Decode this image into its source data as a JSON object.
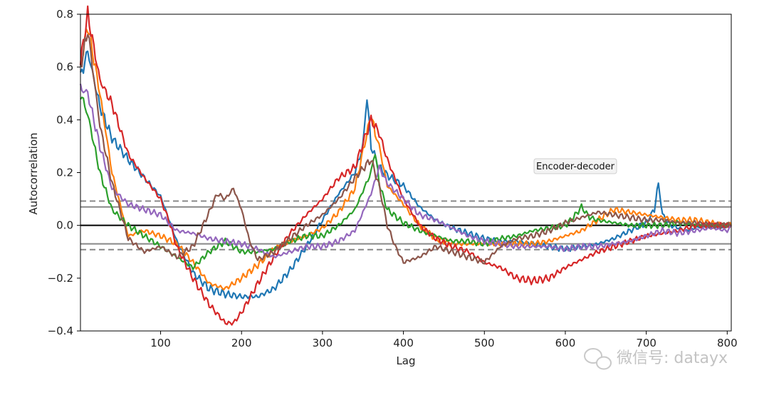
{
  "chart_data": {
    "type": "line",
    "title": "",
    "xlabel": "Lag",
    "ylabel": "Autocorrelation",
    "xlim": [
      1,
      805
    ],
    "ylim": [
      -0.4,
      0.8
    ],
    "xticks": [
      100,
      200,
      300,
      400,
      500,
      600,
      700,
      800
    ],
    "xtick_labels": [
      "100",
      "200",
      "300",
      "400",
      "500",
      "600",
      "700",
      "800"
    ],
    "yticks": [
      -0.4,
      -0.2,
      0.0,
      0.2,
      0.4,
      0.6,
      0.8
    ],
    "ytick_labels": [
      "−0.4",
      "−0.2",
      "0.0",
      "0.2",
      "0.4",
      "0.6",
      "0.8"
    ],
    "annotation": "Encoder-decoder",
    "reference_lines": [
      {
        "name": "zero",
        "y": 0.0,
        "style": "solid",
        "color": "#000000"
      },
      {
        "name": "ci95-upper",
        "y": 0.07,
        "style": "solid",
        "color": "#888888"
      },
      {
        "name": "ci95-lower",
        "y": -0.07,
        "style": "solid",
        "color": "#888888"
      },
      {
        "name": "ci99-upper",
        "y": 0.092,
        "style": "dashed",
        "color": "#888888"
      },
      {
        "name": "ci99-lower",
        "y": -0.092,
        "style": "dashed",
        "color": "#888888"
      }
    ],
    "series": [
      {
        "name": "series-1",
        "color": "#1f77b4",
        "x": [
          1,
          10,
          25,
          40,
          60,
          80,
          100,
          120,
          140,
          160,
          180,
          200,
          220,
          240,
          260,
          280,
          300,
          320,
          340,
          350,
          355,
          360,
          370,
          380,
          400,
          420,
          440,
          460,
          480,
          500,
          520,
          540,
          560,
          580,
          600,
          620,
          640,
          660,
          680,
          700,
          710,
          715,
          720,
          730,
          750,
          770,
          790,
          805
        ],
        "y": [
          0.56,
          0.66,
          0.45,
          0.33,
          0.25,
          0.18,
          0.11,
          -0.06,
          -0.18,
          -0.24,
          -0.26,
          -0.27,
          -0.27,
          -0.24,
          -0.17,
          -0.08,
          0.02,
          0.12,
          0.2,
          0.3,
          0.49,
          0.3,
          0.22,
          0.19,
          0.15,
          0.07,
          0.02,
          -0.01,
          -0.03,
          -0.05,
          -0.06,
          -0.06,
          -0.07,
          -0.08,
          -0.09,
          -0.08,
          -0.07,
          -0.05,
          -0.02,
          0.01,
          0.06,
          0.16,
          0.04,
          0.0,
          -0.02,
          0.0,
          0.0,
          0.0
        ]
      },
      {
        "name": "series-2",
        "color": "#ff7f0e",
        "x": [
          1,
          10,
          25,
          40,
          60,
          80,
          100,
          120,
          140,
          160,
          180,
          200,
          220,
          240,
          260,
          280,
          300,
          320,
          340,
          350,
          360,
          365,
          370,
          380,
          400,
          420,
          440,
          460,
          480,
          500,
          520,
          540,
          560,
          580,
          600,
          620,
          640,
          660,
          680,
          700,
          720,
          740,
          760,
          780,
          800,
          805
        ],
        "y": [
          0.6,
          0.76,
          0.5,
          0.2,
          -0.04,
          -0.02,
          -0.04,
          -0.07,
          -0.14,
          -0.22,
          -0.24,
          -0.2,
          -0.15,
          -0.09,
          -0.06,
          -0.04,
          -0.01,
          0.05,
          0.14,
          0.28,
          0.42,
          0.35,
          0.3,
          0.15,
          0.08,
          0.0,
          -0.05,
          -0.07,
          -0.07,
          -0.07,
          -0.07,
          -0.07,
          -0.07,
          -0.06,
          -0.04,
          -0.02,
          0.02,
          0.06,
          0.05,
          0.04,
          0.03,
          0.02,
          0.02,
          0.01,
          0.0,
          0.0
        ]
      },
      {
        "name": "series-3",
        "color": "#2ca02c",
        "x": [
          1,
          10,
          25,
          40,
          60,
          80,
          100,
          120,
          140,
          160,
          180,
          200,
          220,
          240,
          260,
          280,
          300,
          320,
          340,
          360,
          365,
          370,
          380,
          400,
          420,
          440,
          460,
          480,
          500,
          520,
          540,
          560,
          580,
          600,
          610,
          620,
          630,
          640,
          660,
          680,
          700,
          720,
          740,
          760,
          780,
          800,
          805
        ],
        "y": [
          0.5,
          0.42,
          0.2,
          0.06,
          0.0,
          -0.04,
          -0.08,
          -0.12,
          -0.16,
          -0.1,
          -0.06,
          -0.1,
          -0.1,
          -0.09,
          -0.06,
          -0.04,
          -0.04,
          0.0,
          0.06,
          0.2,
          0.28,
          0.16,
          0.06,
          0.01,
          -0.02,
          -0.04,
          -0.06,
          -0.06,
          -0.07,
          -0.05,
          -0.04,
          -0.02,
          -0.01,
          0.0,
          0.03,
          0.07,
          0.03,
          0.02,
          0.01,
          0.0,
          0.0,
          0.0,
          0.01,
          0.0,
          0.0,
          0.0,
          0.0
        ]
      },
      {
        "name": "series-4",
        "color": "#d62728",
        "x": [
          1,
          10,
          25,
          40,
          60,
          80,
          100,
          110,
          120,
          130,
          140,
          160,
          180,
          190,
          200,
          220,
          240,
          260,
          280,
          300,
          320,
          340,
          360,
          370,
          380,
          400,
          420,
          440,
          460,
          480,
          500,
          520,
          540,
          560,
          580,
          600,
          620,
          640,
          660,
          680,
          700,
          720,
          740,
          760,
          780,
          800,
          805
        ],
        "y": [
          0.62,
          0.8,
          0.55,
          0.46,
          0.27,
          0.18,
          0.1,
          0.02,
          -0.08,
          -0.14,
          -0.2,
          -0.3,
          -0.37,
          -0.37,
          -0.33,
          -0.22,
          -0.12,
          -0.03,
          0.04,
          0.1,
          0.18,
          0.22,
          0.4,
          0.35,
          0.25,
          0.1,
          0.0,
          -0.05,
          -0.08,
          -0.1,
          -0.14,
          -0.16,
          -0.2,
          -0.21,
          -0.2,
          -0.16,
          -0.13,
          -0.1,
          -0.08,
          -0.06,
          -0.04,
          -0.03,
          -0.02,
          0.0,
          0.0,
          0.0,
          0.0
        ]
      },
      {
        "name": "series-5",
        "color": "#9467bd",
        "x": [
          1,
          10,
          25,
          40,
          60,
          80,
          100,
          120,
          140,
          160,
          180,
          200,
          220,
          240,
          260,
          280,
          300,
          320,
          340,
          360,
          370,
          380,
          400,
          420,
          440,
          460,
          480,
          500,
          520,
          540,
          560,
          580,
          600,
          620,
          640,
          660,
          680,
          700,
          720,
          740,
          760,
          780,
          800,
          805
        ],
        "y": [
          0.52,
          0.5,
          0.3,
          0.14,
          0.08,
          0.06,
          0.04,
          -0.02,
          -0.03,
          -0.05,
          -0.06,
          -0.07,
          -0.09,
          -0.12,
          -0.1,
          -0.08,
          -0.08,
          -0.06,
          -0.02,
          0.12,
          0.22,
          0.16,
          0.1,
          0.04,
          0.02,
          -0.01,
          -0.04,
          -0.06,
          -0.07,
          -0.08,
          -0.08,
          -0.08,
          -0.09,
          -0.08,
          -0.08,
          -0.07,
          -0.06,
          -0.04,
          -0.02,
          -0.03,
          -0.02,
          -0.01,
          -0.02,
          0.0
        ]
      },
      {
        "name": "series-6",
        "color": "#8c564b",
        "x": [
          1,
          10,
          25,
          40,
          60,
          80,
          100,
          120,
          140,
          160,
          170,
          180,
          190,
          200,
          210,
          220,
          240,
          260,
          280,
          300,
          320,
          340,
          360,
          370,
          380,
          390,
          400,
          420,
          440,
          460,
          480,
          500,
          520,
          540,
          560,
          580,
          600,
          620,
          640,
          660,
          680,
          700,
          720,
          740,
          760,
          780,
          800,
          805
        ],
        "y": [
          0.6,
          0.74,
          0.38,
          0.16,
          -0.05,
          -0.1,
          -0.08,
          -0.12,
          -0.08,
          0.05,
          0.12,
          0.1,
          0.14,
          0.06,
          -0.06,
          -0.13,
          -0.1,
          -0.05,
          0.0,
          0.04,
          0.1,
          0.18,
          0.25,
          0.15,
          0.0,
          -0.08,
          -0.14,
          -0.12,
          -0.08,
          -0.1,
          -0.12,
          -0.14,
          -0.08,
          -0.05,
          -0.04,
          -0.02,
          0.01,
          0.03,
          0.05,
          0.04,
          0.03,
          0.02,
          0.02,
          0.01,
          0.01,
          0.0,
          0.0,
          0.0
        ]
      }
    ]
  },
  "watermark": {
    "text": "微信号: datayx",
    "icon": "wechat-icon"
  }
}
